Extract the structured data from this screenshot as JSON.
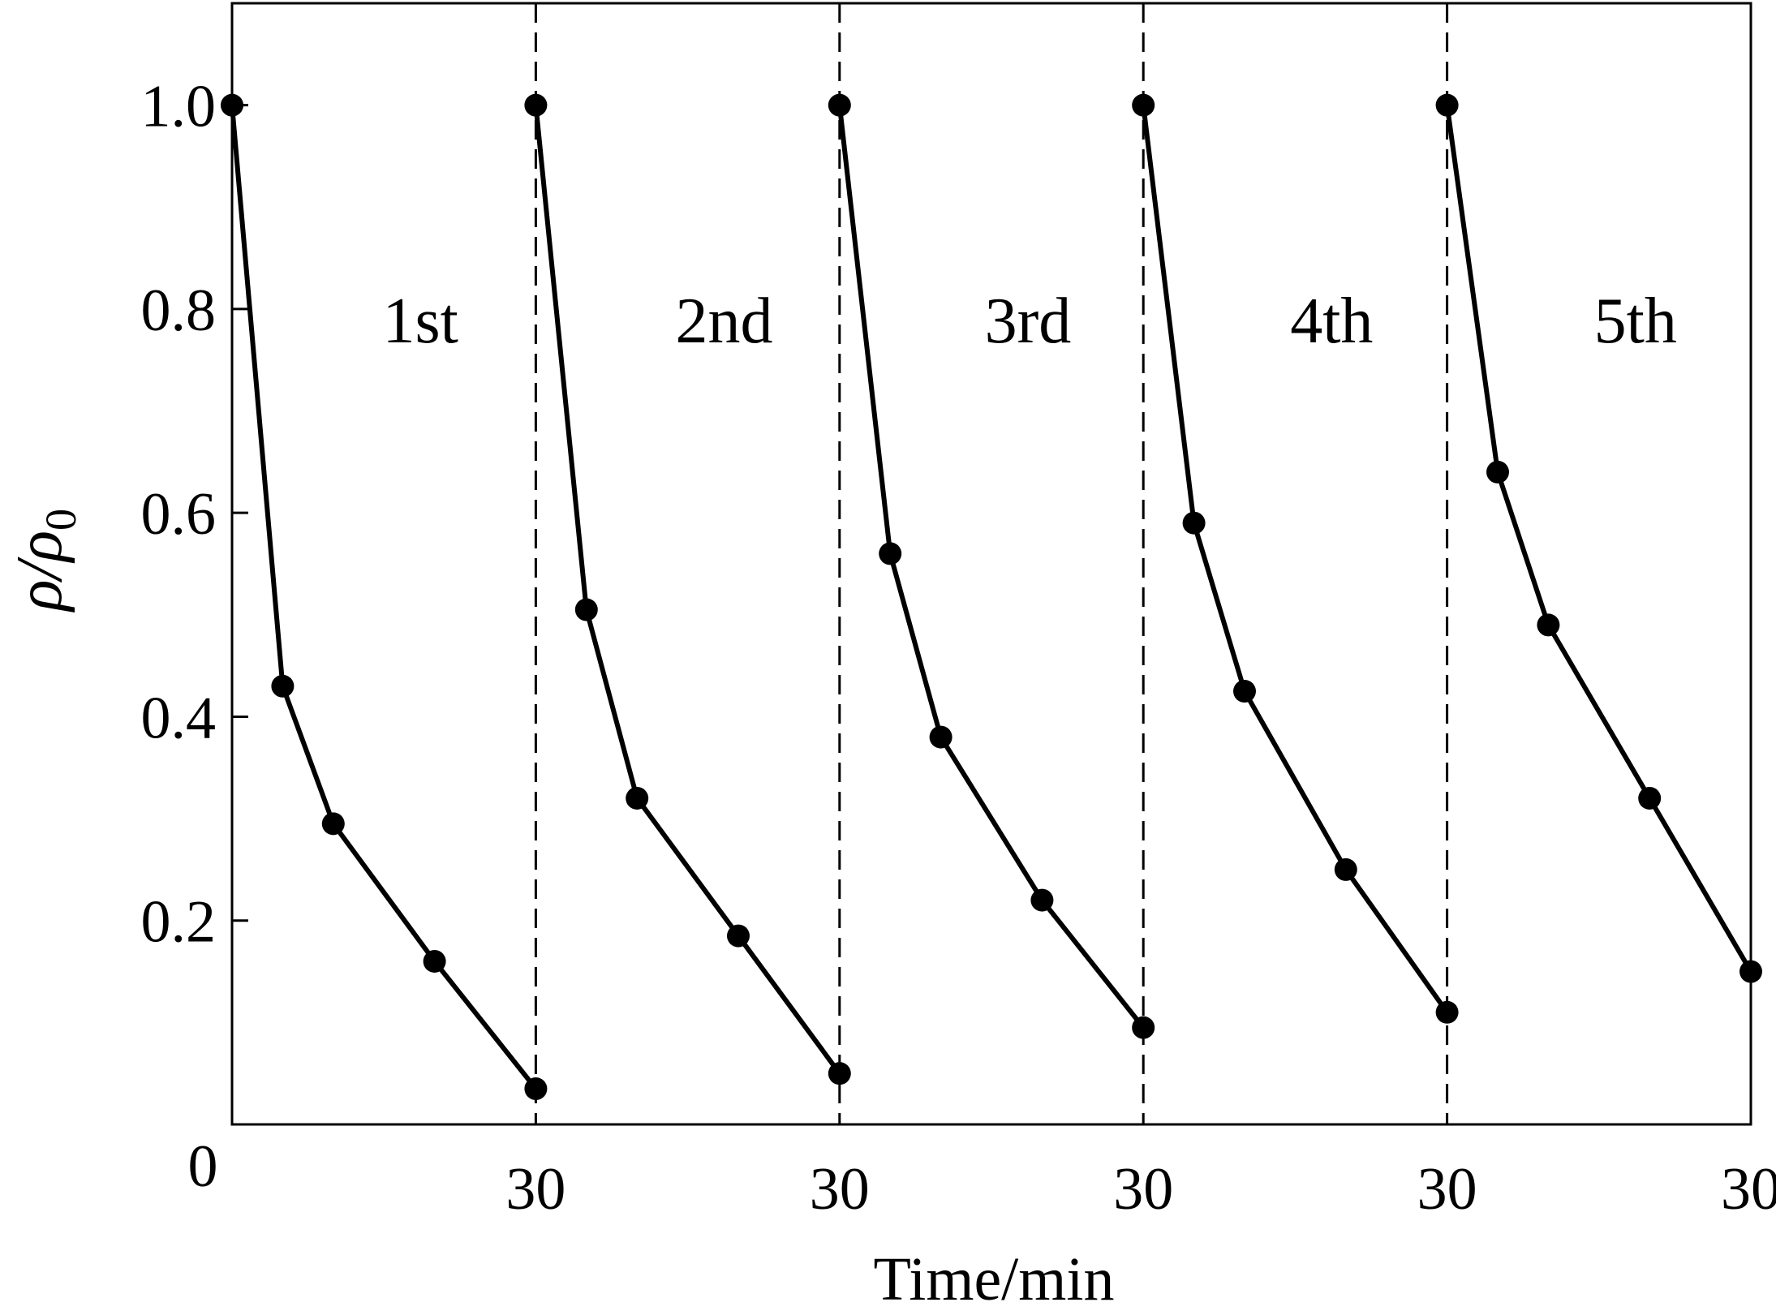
{
  "chart_data": {
    "type": "line",
    "xlabel": "Time/min",
    "ylabel": "ρ/ρ",
    "ylabel_subscript": "0",
    "ylim": [
      0.0,
      1.1
    ],
    "yticks": [
      0.2,
      0.4,
      0.6,
      0.8,
      1.0
    ],
    "ytick_labels": [
      "0.2",
      "0.4",
      "0.6",
      "0.8",
      "1.0"
    ],
    "xlim_per_cycle": [
      0,
      30
    ],
    "xtick_labels": [
      "0",
      "30",
      "30",
      "30",
      "30",
      "30"
    ],
    "grid": false,
    "marker_color": "#000000",
    "line_color": "#000000",
    "cycle_labels": [
      "1st",
      "2nd",
      "3rd",
      "4th",
      "5th"
    ],
    "cycles": [
      {
        "x": [
          0,
          5,
          10,
          20,
          30
        ],
        "y": [
          1.0,
          0.43,
          0.295,
          0.16,
          0.035
        ]
      },
      {
        "x": [
          0,
          5,
          10,
          20,
          30
        ],
        "y": [
          1.0,
          0.505,
          0.32,
          0.185,
          0.05
        ]
      },
      {
        "x": [
          0,
          5,
          10,
          20,
          30
        ],
        "y": [
          1.0,
          0.56,
          0.38,
          0.22,
          0.095
        ]
      },
      {
        "x": [
          0,
          5,
          10,
          20,
          30
        ],
        "y": [
          1.0,
          0.59,
          0.425,
          0.25,
          0.11
        ]
      },
      {
        "x": [
          0,
          5,
          10,
          20,
          30
        ],
        "y": [
          1.0,
          0.64,
          0.49,
          0.32,
          0.15
        ]
      }
    ]
  }
}
